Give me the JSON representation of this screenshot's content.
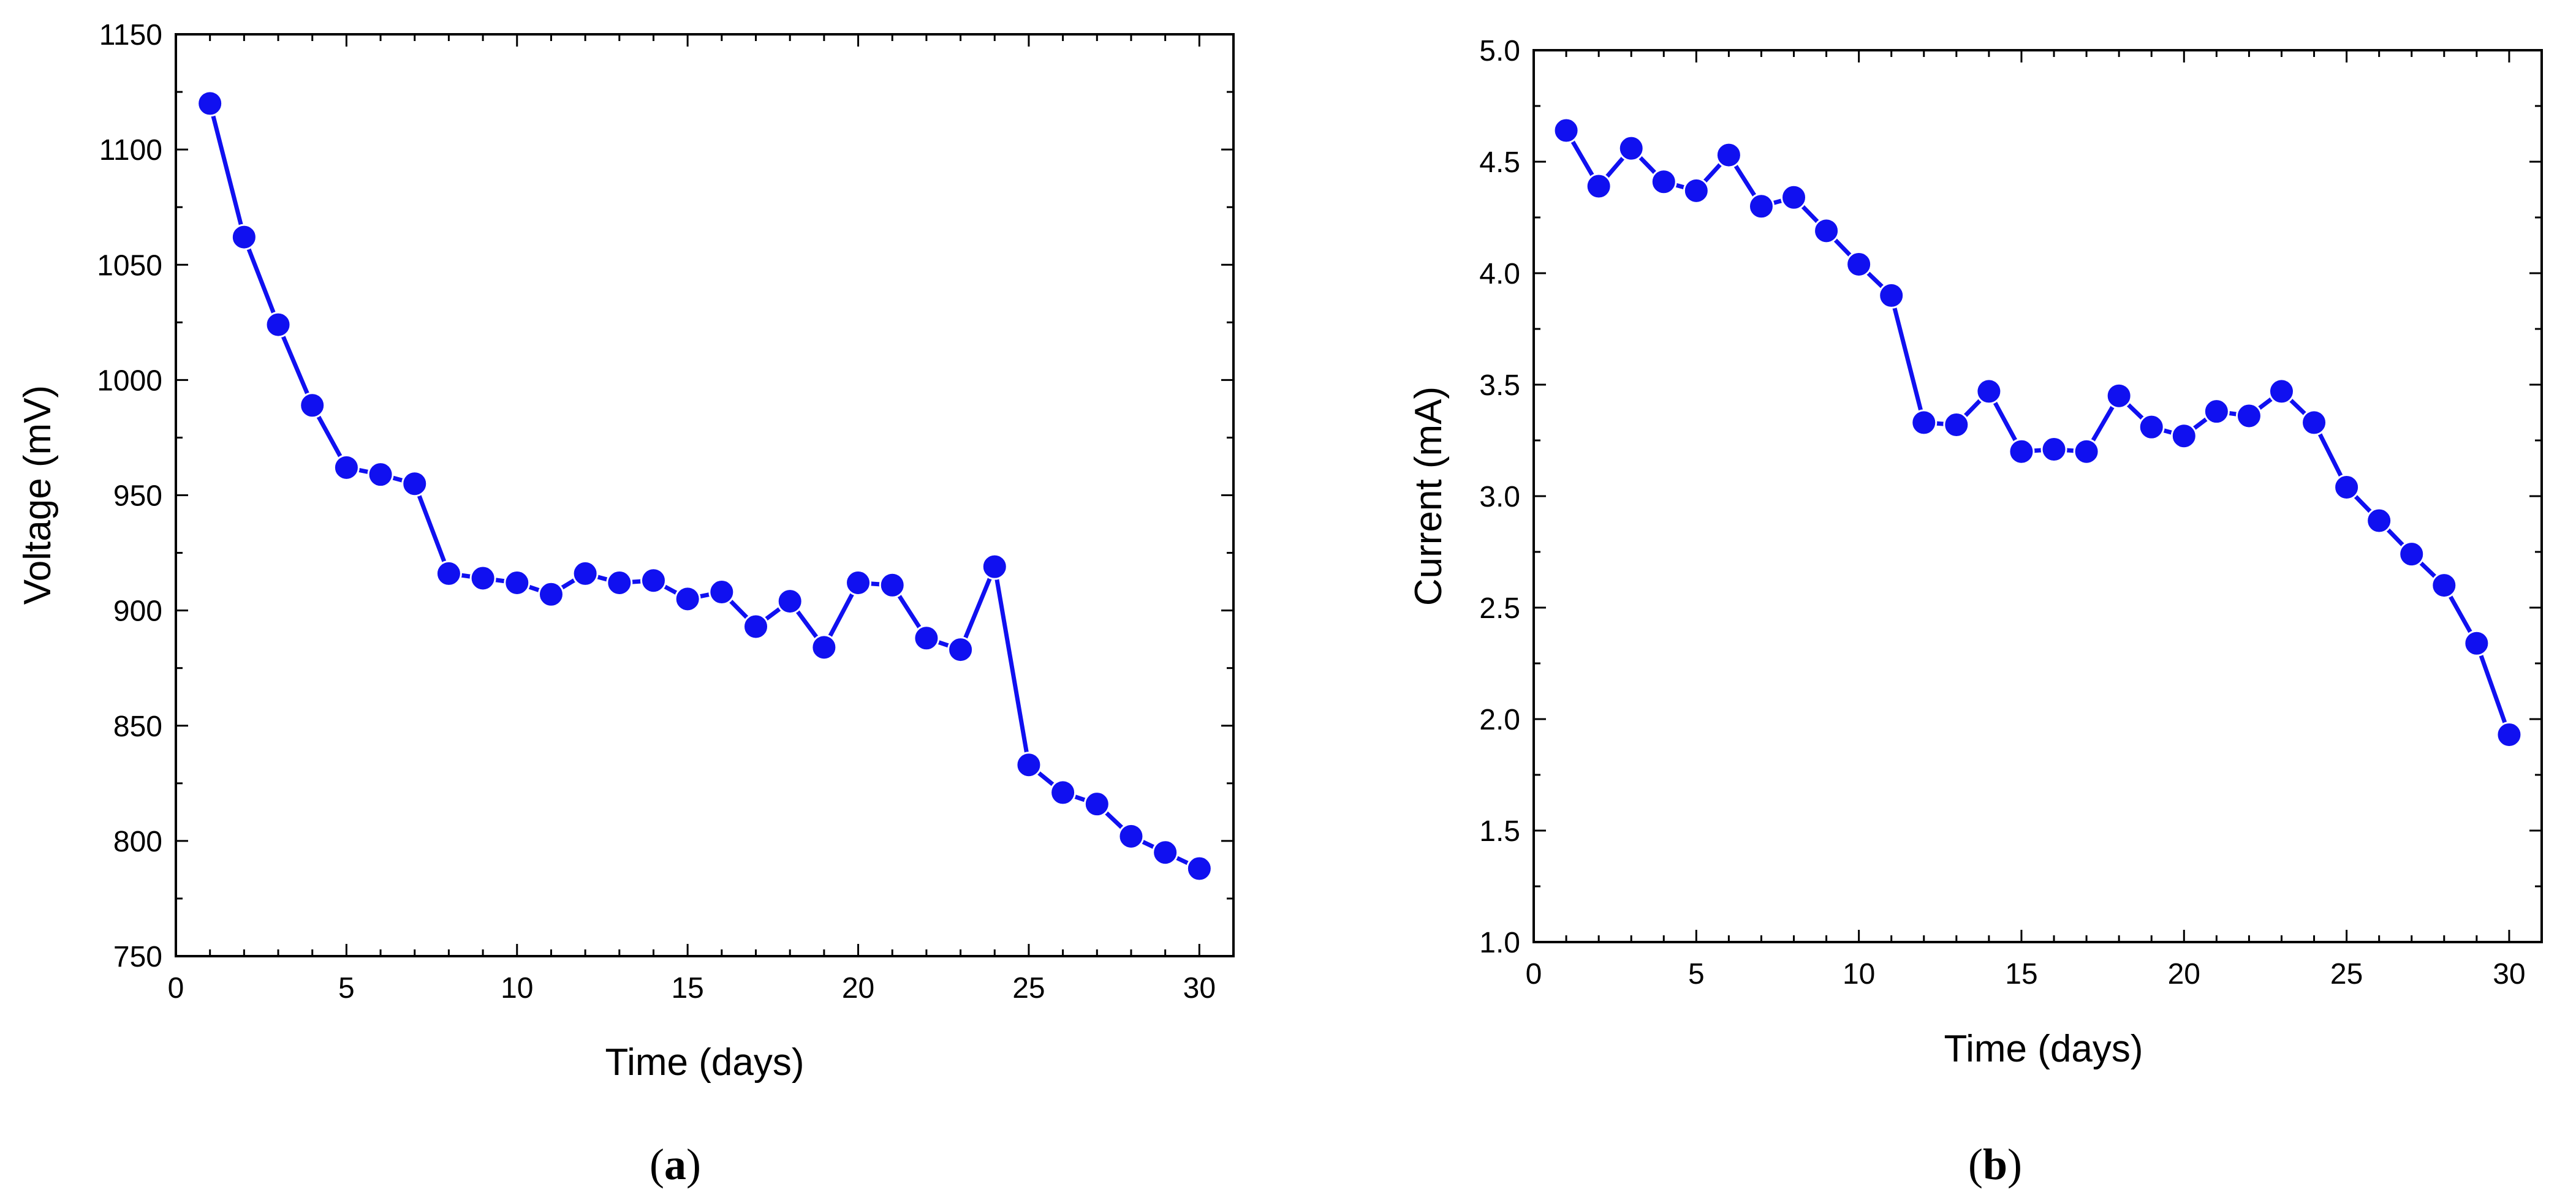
{
  "colors": {
    "series": "#1010F0",
    "axis": "#000000",
    "background": "#ffffff"
  },
  "chart_data": [
    {
      "type": "line",
      "panel_label": "a",
      "title": "",
      "xlabel": "Time (days)",
      "ylabel": "Voltage (mV)",
      "xlim": [
        0,
        31
      ],
      "ylim": [
        750,
        1150
      ],
      "xticks": [
        0,
        5,
        10,
        15,
        20,
        25,
        30
      ],
      "yticks": [
        750,
        800,
        850,
        900,
        950,
        1000,
        1050,
        1100,
        1150
      ],
      "x_minor_step": 1,
      "y_minor_step": 25,
      "grid": false,
      "marker": "circle",
      "x": [
        1,
        2,
        3,
        4,
        5,
        6,
        7,
        8,
        9,
        10,
        11,
        12,
        13,
        14,
        15,
        16,
        17,
        18,
        19,
        20,
        21,
        22,
        23,
        24,
        25,
        26,
        27,
        28,
        29,
        30
      ],
      "series": [
        {
          "name": "Voltage",
          "values": [
            1120,
            1062,
            1024,
            989,
            962,
            959,
            955,
            916,
            914,
            912,
            907,
            916,
            912,
            913,
            905,
            908,
            893,
            904,
            884,
            912,
            911,
            888,
            883,
            919,
            833,
            821,
            816,
            802,
            795,
            788
          ]
        }
      ]
    },
    {
      "type": "line",
      "panel_label": "b",
      "title": "",
      "xlabel": "Time (days)",
      "ylabel": "Current (mA)",
      "xlim": [
        0,
        31
      ],
      "ylim": [
        1.0,
        5.0
      ],
      "xticks": [
        0,
        5,
        10,
        15,
        20,
        25,
        30
      ],
      "yticks": [
        1.0,
        1.5,
        2.0,
        2.5,
        3.0,
        3.5,
        4.0,
        4.5,
        5.0
      ],
      "y_tick_decimals": 1,
      "x_minor_step": 1,
      "y_minor_step": 0.25,
      "grid": false,
      "marker": "circle",
      "x": [
        1,
        2,
        3,
        4,
        5,
        6,
        7,
        8,
        9,
        10,
        11,
        12,
        13,
        14,
        15,
        16,
        17,
        18,
        19,
        20,
        21,
        22,
        23,
        24,
        25,
        26,
        27,
        28,
        29,
        30
      ],
      "series": [
        {
          "name": "Current",
          "values": [
            4.64,
            4.39,
            4.56,
            4.41,
            4.37,
            4.53,
            4.3,
            4.34,
            4.19,
            4.04,
            3.9,
            3.33,
            3.32,
            3.47,
            3.2,
            3.21,
            3.2,
            3.45,
            3.31,
            3.27,
            3.38,
            3.36,
            3.47,
            3.33,
            3.04,
            2.89,
            2.74,
            2.6,
            2.34,
            1.93
          ]
        }
      ]
    }
  ]
}
